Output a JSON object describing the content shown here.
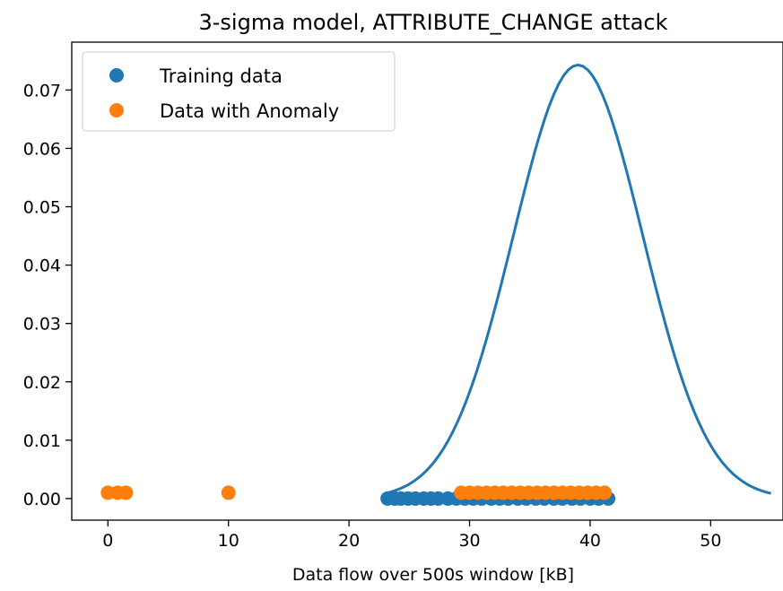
{
  "chart_data": {
    "type": "scatter",
    "title": "3-sigma model, ATTRIBUTE_CHANGE attack",
    "xlabel": "Data flow over 500s window [kB]",
    "ylabel": "",
    "xlim": [
      -3,
      56
    ],
    "ylim": [
      -0.0037,
      0.0782
    ],
    "xticks": [
      0,
      10,
      20,
      30,
      40,
      50
    ],
    "yticks": [
      0.0,
      0.01,
      0.02,
      0.03,
      0.04,
      0.05,
      0.06,
      0.07
    ],
    "ytick_labels": [
      "0.00",
      "0.01",
      "0.02",
      "0.03",
      "0.04",
      "0.05",
      "0.06",
      "0.07"
    ],
    "grid": false,
    "legend": "top-left",
    "colors": {
      "training": "#1f77b4",
      "anomaly": "#ff7f0e",
      "curve": "#1f77b4"
    },
    "series": [
      {
        "name": "Training data",
        "kind": "scatter",
        "color": "#1f77b4",
        "x": [
          23.2,
          23.8,
          24.3,
          24.9,
          25.5,
          26.2,
          26.8,
          27.4,
          28.2,
          28.9,
          29.6,
          30.3,
          31.0,
          31.8,
          32.5,
          33.2,
          34.0,
          34.7,
          35.5,
          36.2,
          37.0,
          37.7,
          38.5,
          39.2,
          40.0,
          40.7,
          41.5
        ],
        "y": 0.0
      },
      {
        "name": "Data with Anomaly",
        "kind": "scatter",
        "color": "#ff7f0e",
        "x": [
          0.0,
          0.8,
          1.5,
          10.0,
          29.3,
          30.0,
          30.7,
          31.4,
          32.1,
          32.8,
          33.5,
          34.2,
          34.9,
          35.6,
          36.3,
          37.0,
          37.7,
          38.4,
          39.1,
          39.8,
          40.5,
          41.2
        ],
        "y": 0.001
      },
      {
        "kind": "line",
        "color": "#1f77b4",
        "mean": 39.0,
        "std": 5.37,
        "x_range": [
          23.0,
          55.0
        ]
      }
    ]
  }
}
